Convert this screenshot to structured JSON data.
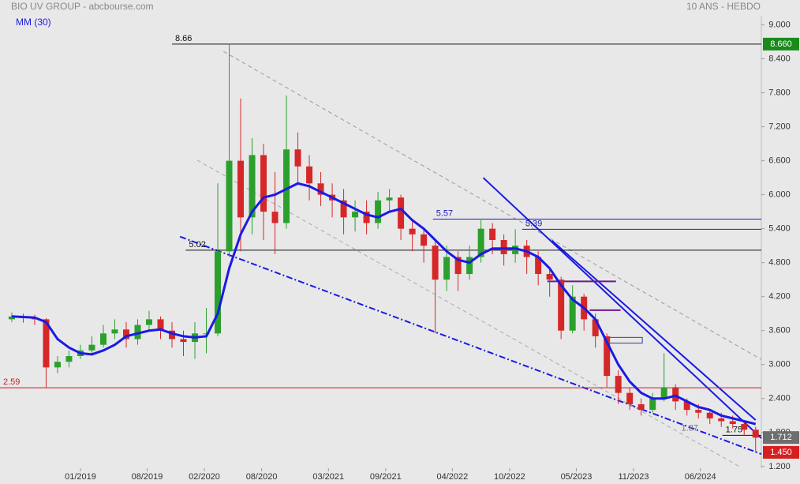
{
  "chart_data": {
    "type": "candlestick",
    "title": "BIO UV GROUP - abcbourse.com",
    "subtitle": "10 ANS - HEBDO",
    "xlim": [
      2018.297,
      2024.95
    ],
    "ylim": [
      1.17,
      9.16
    ],
    "yticks": [
      {
        "value": 9.0,
        "label": "9.000"
      },
      {
        "value": 8.4,
        "label": "8.400"
      },
      {
        "value": 7.8,
        "label": "7.800"
      },
      {
        "value": 7.2,
        "label": "7.200"
      },
      {
        "value": 6.6,
        "label": "6.600"
      },
      {
        "value": 6.0,
        "label": "6.000"
      },
      {
        "value": 5.4,
        "label": "5.400"
      },
      {
        "value": 4.8,
        "label": "4.800"
      },
      {
        "value": 4.2,
        "label": "4.200"
      },
      {
        "value": 3.6,
        "label": "3.600"
      },
      {
        "value": 3.0,
        "label": "3.000"
      },
      {
        "value": 2.4,
        "label": "2.400"
      },
      {
        "value": 1.8,
        "label": "1.800"
      },
      {
        "value": 1.2,
        "label": "1.200"
      }
    ],
    "xticks": [
      {
        "value": 2019.0,
        "label": "01/2019"
      },
      {
        "value": 2019.583,
        "label": "08/2019"
      },
      {
        "value": 2020.083,
        "label": "02/2020"
      },
      {
        "value": 2020.583,
        "label": "08/2020"
      },
      {
        "value": 2021.167,
        "label": "03/2021"
      },
      {
        "value": 2021.667,
        "label": "09/2021"
      },
      {
        "value": 2022.25,
        "label": "04/2022"
      },
      {
        "value": 2022.75,
        "label": "10/2022"
      },
      {
        "value": 2023.333,
        "label": "05/2023"
      },
      {
        "value": 2023.833,
        "label": "11/2023"
      },
      {
        "value": 2024.417,
        "label": "06/2024"
      }
    ],
    "x": [
      2018.4,
      2018.5,
      2018.6,
      2018.7,
      2018.8,
      2018.9,
      2019.0,
      2019.1,
      2019.2,
      2019.3,
      2019.4,
      2019.5,
      2019.6,
      2019.7,
      2019.8,
      2019.9,
      2020.0,
      2020.1,
      2020.2,
      2020.3,
      2020.4,
      2020.5,
      2020.6,
      2020.7,
      2020.8,
      2020.9,
      2021.0,
      2021.1,
      2021.2,
      2021.3,
      2021.4,
      2021.5,
      2021.6,
      2021.7,
      2021.8,
      2021.9,
      2022.0,
      2022.1,
      2022.2,
      2022.3,
      2022.4,
      2022.5,
      2022.6,
      2022.7,
      2022.8,
      2022.9,
      2023.0,
      2023.1,
      2023.2,
      2023.3,
      2023.4,
      2023.5,
      2023.6,
      2023.7,
      2023.8,
      2023.9,
      2024.0,
      2024.1,
      2024.2,
      2024.3,
      2024.4,
      2024.5,
      2024.6,
      2024.7,
      2024.8,
      2024.9
    ],
    "open": [
      3.8,
      3.85,
      3.82,
      3.8,
      2.95,
      3.05,
      3.15,
      3.25,
      3.35,
      3.55,
      3.62,
      3.45,
      3.7,
      3.8,
      3.6,
      3.45,
      3.4,
      3.55,
      3.55,
      5.0,
      6.6,
      5.6,
      6.7,
      5.7,
      5.5,
      6.8,
      6.5,
      6.2,
      6.0,
      5.9,
      5.6,
      5.7,
      5.5,
      5.9,
      5.95,
      5.4,
      5.3,
      5.1,
      4.5,
      4.9,
      4.6,
      4.9,
      5.4,
      5.2,
      4.95,
      5.1,
      4.9,
      4.6,
      4.5,
      3.6,
      4.2,
      3.8,
      3.5,
      2.8,
      2.5,
      2.3,
      2.2,
      2.4,
      2.6,
      2.35,
      2.2,
      2.15,
      2.05,
      2.0,
      1.95,
      1.85
    ],
    "high": [
      3.92,
      3.9,
      3.88,
      3.82,
      3.15,
      3.25,
      3.35,
      3.5,
      3.7,
      3.8,
      3.75,
      3.8,
      3.95,
      3.85,
      3.75,
      3.6,
      3.75,
      4.0,
      6.2,
      8.66,
      7.7,
      7.0,
      6.9,
      6.4,
      7.75,
      7.1,
      6.7,
      6.4,
      6.2,
      6.1,
      5.9,
      5.9,
      6.05,
      6.1,
      6.0,
      5.55,
      5.4,
      5.2,
      5.1,
      5.0,
      5.1,
      5.55,
      5.5,
      5.3,
      5.39,
      5.2,
      5.0,
      4.7,
      4.55,
      4.4,
      4.25,
      3.9,
      3.55,
      2.9,
      2.6,
      2.4,
      2.5,
      3.2,
      2.65,
      2.4,
      2.3,
      2.2,
      2.15,
      2.1,
      2.0,
      1.9
    ],
    "low": [
      3.75,
      3.74,
      3.7,
      2.59,
      2.85,
      2.95,
      3.1,
      3.2,
      3.3,
      3.45,
      3.3,
      3.35,
      3.6,
      3.45,
      3.3,
      3.15,
      3.1,
      3.2,
      3.5,
      4.9,
      5.0,
      5.3,
      5.2,
      4.95,
      5.4,
      6.2,
      5.9,
      5.8,
      5.6,
      5.3,
      5.35,
      5.3,
      5.4,
      5.7,
      5.2,
      5.0,
      4.8,
      3.55,
      4.3,
      4.3,
      4.5,
      4.8,
      4.95,
      4.75,
      4.8,
      4.6,
      4.4,
      4.2,
      3.45,
      3.55,
      3.6,
      3.3,
      2.6,
      2.3,
      2.2,
      2.1,
      2.15,
      2.35,
      2.2,
      2.1,
      2.05,
      1.95,
      1.9,
      1.87,
      1.75,
      1.45
    ],
    "close": [
      3.85,
      3.82,
      3.8,
      2.95,
      3.05,
      3.15,
      3.25,
      3.35,
      3.55,
      3.62,
      3.45,
      3.7,
      3.8,
      3.6,
      3.45,
      3.4,
      3.55,
      3.55,
      5.0,
      6.6,
      5.6,
      6.7,
      5.7,
      5.5,
      6.8,
      6.5,
      6.2,
      6.0,
      5.9,
      5.6,
      5.7,
      5.5,
      5.9,
      5.95,
      5.4,
      5.3,
      5.1,
      4.5,
      4.9,
      4.6,
      4.9,
      5.4,
      5.2,
      4.95,
      5.1,
      4.9,
      4.6,
      4.5,
      3.6,
      4.2,
      3.8,
      3.5,
      2.8,
      2.5,
      2.3,
      2.2,
      2.4,
      2.6,
      2.35,
      2.2,
      2.15,
      2.05,
      2.0,
      1.95,
      1.85,
      1.71
    ],
    "up_color": "#2ca02c",
    "down_color": "#d62728",
    "series": [
      {
        "name": "MM (30)",
        "color": "#1a1ae6",
        "values": [
          3.85,
          3.84,
          3.83,
          3.75,
          3.45,
          3.3,
          3.2,
          3.18,
          3.25,
          3.35,
          3.5,
          3.55,
          3.6,
          3.62,
          3.55,
          3.5,
          3.48,
          3.5,
          3.9,
          4.7,
          5.3,
          5.7,
          5.95,
          6.0,
          6.1,
          6.2,
          6.15,
          6.05,
          5.95,
          5.85,
          5.75,
          5.65,
          5.6,
          5.7,
          5.75,
          5.55,
          5.4,
          5.2,
          5.0,
          4.85,
          4.8,
          4.95,
          5.05,
          5.05,
          5.05,
          5.0,
          4.9,
          4.7,
          4.4,
          4.15,
          4.0,
          3.8,
          3.4,
          3.0,
          2.7,
          2.5,
          2.4,
          2.4,
          2.45,
          2.35,
          2.25,
          2.2,
          2.1,
          2.05,
          2.0,
          1.95
        ]
      }
    ],
    "levels": [
      {
        "value": 8.66,
        "from": 2019.8,
        "color": "#111111"
      },
      {
        "value": 5.57,
        "from": 2022.08,
        "color": "#1a1ab4"
      },
      {
        "value": 5.39,
        "from": 2022.86,
        "color": "#1a1ab4"
      },
      {
        "value": 5.02,
        "from": 2019.92,
        "color": "#111111"
      },
      {
        "value": 2.59,
        "from": 2018.297,
        "color": "#c81e1e"
      },
      {
        "value": 1.75,
        "from": 2024.61,
        "color": "#111111"
      }
    ],
    "annotations": [
      {
        "value": 1.87,
        "x": 2024.25,
        "color": "#777777"
      }
    ],
    "segments": [
      {
        "value": 4.47,
        "x": [
          2023.08,
          2023.68
        ],
        "color": "#6a1a8a"
      },
      {
        "value": 3.96,
        "x": [
          2023.45,
          2023.72
        ],
        "color": "#6a1a8a"
      }
    ],
    "boxes": [
      {
        "values": [
          3.48,
          3.38
        ],
        "x": [
          2023.58,
          2023.91
        ],
        "color": "#3a3a9a"
      }
    ],
    "trendlines": [
      {
        "x": [
          2019.87,
          2024.95
        ],
        "values": [
          5.26,
          1.42
        ],
        "color": "#1a1ae6",
        "style": "dashdot"
      },
      {
        "x": [
          2020.25,
          2024.95
        ],
        "values": [
          8.53,
          3.09
        ],
        "color": "#999999",
        "style": "dashed"
      },
      {
        "x": [
          2020.02,
          2024.75
        ],
        "values": [
          6.61,
          1.21
        ],
        "color": "#aaaaaa",
        "style": "dashed"
      },
      {
        "x": [
          2022.52,
          2024.95
        ],
        "values": [
          6.3,
          1.7
        ],
        "color": "#1a1ae6",
        "style": "solid"
      },
      {
        "x": [
          2023.12,
          2024.9
        ],
        "values": [
          5.19,
          2.02
        ],
        "color": "#1a1ae6",
        "style": "solid"
      }
    ],
    "badges": [
      {
        "value": 8.66,
        "label": "8.660",
        "color": "#1a8a1a"
      },
      {
        "value": 1.712,
        "label": "1.712",
        "color": "#6e6e6e"
      },
      {
        "value": 1.45,
        "label": "1.450",
        "color": "#d62020"
      }
    ]
  }
}
